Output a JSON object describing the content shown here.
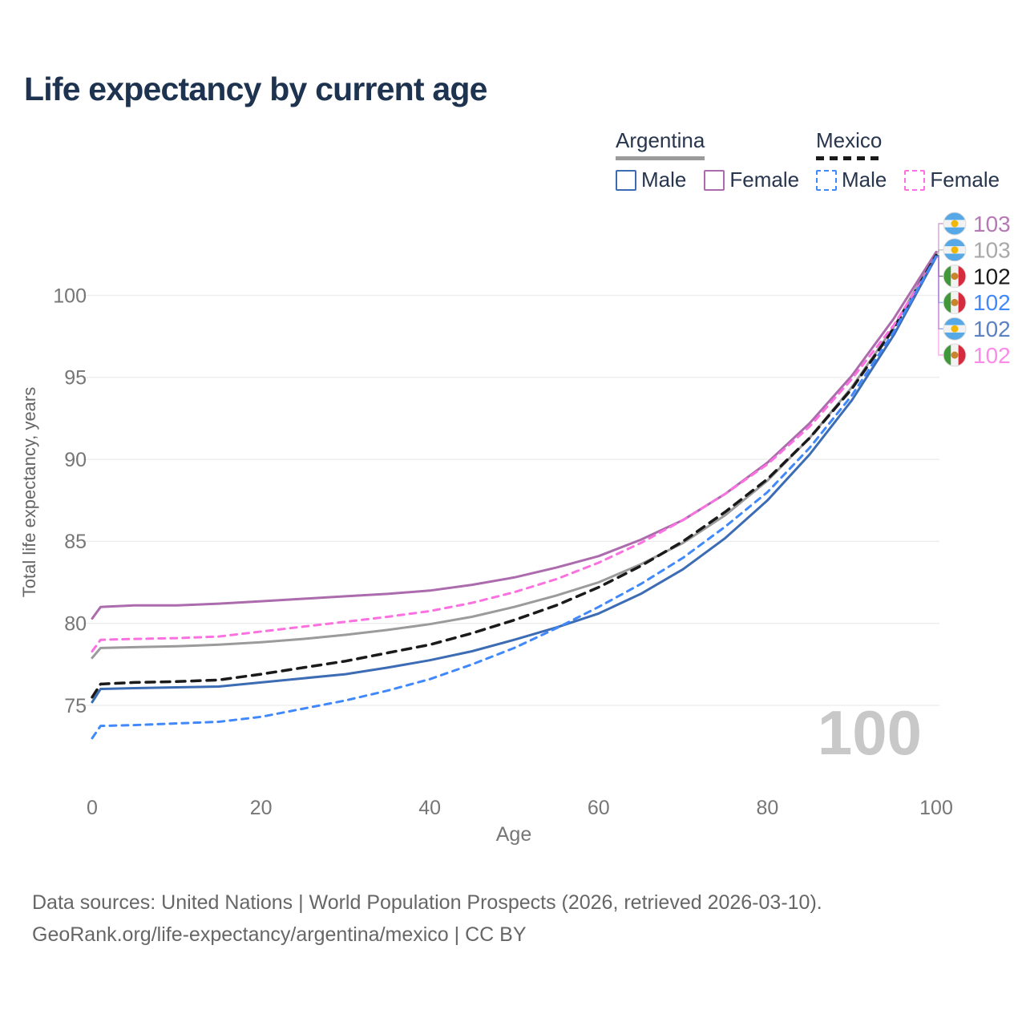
{
  "title": "Life expectancy by current age",
  "legend": {
    "groups": [
      {
        "label": "Argentina",
        "style": "solid",
        "sample_color": "#9b9b9b",
        "items": [
          {
            "label": "Male",
            "color": "#3c6cb4",
            "style": "solid"
          },
          {
            "label": "Female",
            "color": "#ab6bad",
            "style": "solid"
          }
        ]
      },
      {
        "label": "Mexico",
        "style": "dashed",
        "sample_color": "#1a1a1a",
        "items": [
          {
            "label": "Male",
            "color": "#4189fb",
            "style": "dashed"
          },
          {
            "label": "Female",
            "color": "#fb71e0",
            "style": "dashed"
          }
        ]
      }
    ]
  },
  "chart_data": {
    "type": "line",
    "title": "Life expectancy by current age",
    "xlabel": "Age",
    "ylabel": "Total life expectancy, years",
    "x_ticks": [
      0,
      20,
      40,
      60,
      80,
      100
    ],
    "y_ticks": [
      75,
      80,
      85,
      90,
      95,
      100
    ],
    "xlim": [
      0,
      100
    ],
    "ylim": [
      72.5,
      103.5
    ],
    "grid": "horizontal-only",
    "gridline_color": "#ececec",
    "tick_color": "#767676",
    "age_watermark": "100",
    "watermark_color": "#c8c8c8",
    "x": [
      0,
      1,
      5,
      10,
      15,
      20,
      25,
      30,
      35,
      40,
      45,
      50,
      55,
      60,
      65,
      70,
      75,
      80,
      85,
      90,
      95,
      100
    ],
    "series": [
      {
        "name": "Argentina Female",
        "country": "Argentina",
        "sex": "Female",
        "flag": "argentina",
        "color": "#ab6bad",
        "label_color": "#b579b5",
        "dashed": false,
        "end_label": "103",
        "values": [
          80.3,
          81.0,
          81.1,
          81.1,
          81.2,
          81.35,
          81.5,
          81.65,
          81.8,
          82.0,
          82.35,
          82.8,
          83.4,
          84.1,
          85.1,
          86.3,
          87.9,
          89.8,
          92.2,
          95.1,
          98.6,
          102.65
        ]
      },
      {
        "name": "Argentina",
        "country": "Argentina",
        "sex": "Both sexes",
        "flag": "argentina",
        "color": "#9b9b9b",
        "label_color": "#a9a9a9",
        "dashed": false,
        "end_label": "103",
        "values": [
          77.9,
          78.5,
          78.55,
          78.6,
          78.7,
          78.85,
          79.05,
          79.3,
          79.6,
          79.95,
          80.4,
          81.0,
          81.7,
          82.5,
          83.6,
          84.9,
          86.6,
          88.7,
          91.3,
          94.4,
          98.1,
          102.55
        ]
      },
      {
        "name": "Mexico",
        "country": "Mexico",
        "sex": "Both sexes",
        "flag": "mexico",
        "color": "#1a1a1a",
        "label_color": "#1a1a1a",
        "dashed": true,
        "end_label": "102",
        "values": [
          75.5,
          76.3,
          76.4,
          76.45,
          76.55,
          76.9,
          77.3,
          77.7,
          78.2,
          78.7,
          79.4,
          80.2,
          81.1,
          82.2,
          83.5,
          85.0,
          86.8,
          88.8,
          91.3,
          94.3,
          98.0,
          102.45
        ]
      },
      {
        "name": "Mexico Male",
        "country": "Mexico",
        "sex": "Male",
        "flag": "mexico",
        "color": "#4189fb",
        "label_color": "#4189fb",
        "dashed": true,
        "end_label": "102",
        "values": [
          73.0,
          73.75,
          73.8,
          73.9,
          74.0,
          74.3,
          74.8,
          75.3,
          75.9,
          76.6,
          77.5,
          78.5,
          79.7,
          81.0,
          82.4,
          84.0,
          85.9,
          88.0,
          90.7,
          93.9,
          97.8,
          102.4
        ]
      },
      {
        "name": "Argentina Male",
        "country": "Argentina",
        "sex": "Male",
        "flag": "argentina",
        "color": "#3c6cb4",
        "label_color": "#5a81c2",
        "dashed": false,
        "end_label": "102",
        "values": [
          75.2,
          76.0,
          76.05,
          76.1,
          76.15,
          76.4,
          76.65,
          76.9,
          77.3,
          77.75,
          78.3,
          79.0,
          79.75,
          80.6,
          81.8,
          83.3,
          85.2,
          87.5,
          90.3,
          93.6,
          97.6,
          102.35
        ]
      },
      {
        "name": "Mexico Female",
        "country": "Mexico",
        "sex": "Female",
        "flag": "mexico",
        "color": "#fb71e0",
        "label_color": "#fb8ae8",
        "dashed": true,
        "end_label": "102",
        "values": [
          78.3,
          79.0,
          79.05,
          79.1,
          79.2,
          79.5,
          79.8,
          80.1,
          80.4,
          80.75,
          81.25,
          81.9,
          82.7,
          83.7,
          84.9,
          86.3,
          87.9,
          89.7,
          92.0,
          94.9,
          98.2,
          102.3
        ]
      }
    ]
  },
  "footer": {
    "line1": "Data sources: United Nations | World Population Prospects (2026, retrieved 2026-03-10).",
    "line2": "GeoRank.org/life-expectancy/argentina/mexico | CC BY"
  }
}
